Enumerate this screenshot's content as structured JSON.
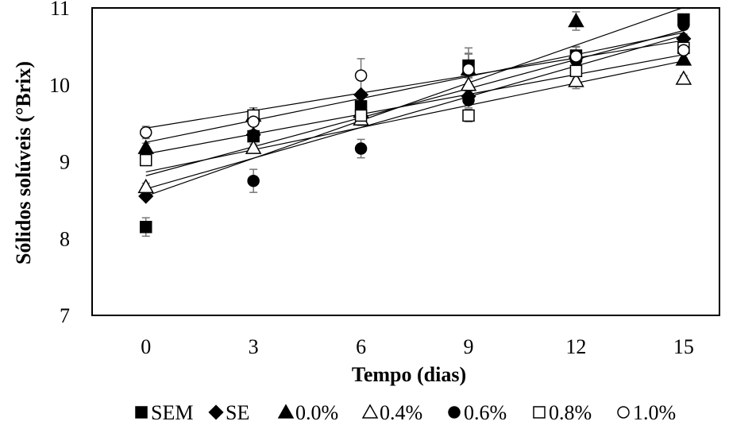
{
  "chart_data": {
    "type": "scatter",
    "title": "",
    "xlabel": "Tempo (dias)",
    "ylabel": "Sólidos solúveis (°Brix)",
    "xlim": [
      -1.5,
      16
    ],
    "ylim": [
      7,
      11
    ],
    "x_ticks": [
      "0",
      "3",
      "6",
      "9",
      "12",
      "15"
    ],
    "y_ticks": [
      "7",
      "8",
      "9",
      "10",
      "11"
    ],
    "x": [
      0,
      3,
      6,
      9,
      12,
      15
    ],
    "grid": false,
    "legend_position": "bottom",
    "trendlines": true,
    "series": [
      {
        "name": "SEM",
        "marker": "square-filled",
        "values": [
          8.15,
          9.33,
          9.72,
          10.25,
          10.38,
          10.85
        ],
        "errors": [
          0.12,
          0.05,
          0.06,
          0.16,
          0.12,
          0.04
        ]
      },
      {
        "name": "SE",
        "marker": "diamond-filled",
        "values": [
          8.55,
          9.35,
          9.87,
          9.85,
          10.35,
          10.6
        ],
        "errors": [
          0.04,
          0.06,
          0.05,
          0.1,
          0.1,
          0.06
        ]
      },
      {
        "name": "0.0%",
        "marker": "triangle-filled",
        "values": [
          9.18,
          9.6,
          9.65,
          10.2,
          10.83,
          10.33
        ],
        "errors": [
          0.06,
          0.1,
          0.1,
          0.2,
          0.12,
          0.06
        ]
      },
      {
        "name": "0.4%",
        "marker": "triangle-open",
        "values": [
          8.67,
          9.18,
          9.55,
          10.0,
          10.05,
          10.08
        ],
        "errors": [
          0.05,
          0.05,
          0.08,
          0.1,
          0.1,
          0.04
        ]
      },
      {
        "name": "0.6%",
        "marker": "circle-filled",
        "values": [
          9.05,
          8.75,
          9.17,
          9.8,
          10.32,
          10.78
        ],
        "errors": [
          0.05,
          0.15,
          0.12,
          0.1,
          0.1,
          0.06
        ]
      },
      {
        "name": "0.8%",
        "marker": "square-open",
        "values": [
          9.02,
          9.6,
          9.6,
          9.6,
          10.18,
          10.48
        ],
        "errors": [
          0.05,
          0.1,
          0.1,
          0.08,
          0.1,
          0.06
        ]
      },
      {
        "name": "1.0%",
        "marker": "circle-open",
        "values": [
          9.38,
          9.52,
          10.12,
          10.2,
          10.37,
          10.45
        ],
        "errors": [
          0.08,
          0.15,
          0.22,
          0.28,
          0.12,
          0.1
        ]
      }
    ]
  }
}
